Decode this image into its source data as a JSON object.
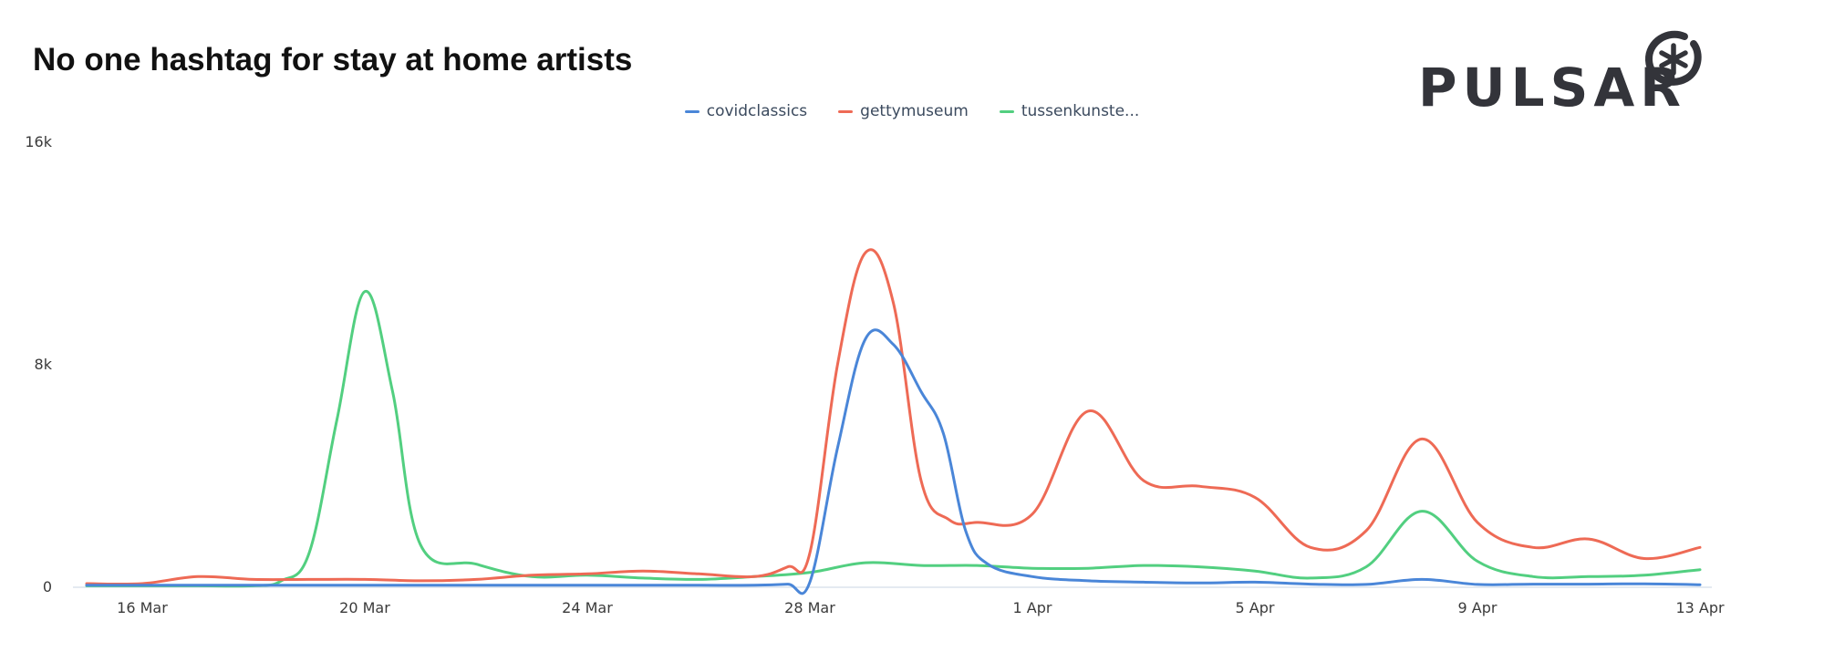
{
  "title": "No one hashtag for stay at home artists",
  "logo": {
    "text": "PULSAR",
    "icon": "asterisk-circle-icon",
    "color": "#33343a"
  },
  "chart_data": {
    "type": "line",
    "title": "No one hashtag for stay at home artists",
    "xlabel": "",
    "ylabel": "",
    "x_range": [
      "2020-03-15",
      "2020-04-13"
    ],
    "ylim": [
      0,
      16000
    ],
    "yticks": [
      {
        "value": 0,
        "label": "0"
      },
      {
        "value": 8000,
        "label": "8k"
      },
      {
        "value": 16000,
        "label": "16k"
      }
    ],
    "xticks": [
      {
        "day": 1,
        "label": "16 Mar"
      },
      {
        "day": 5,
        "label": "20 Mar"
      },
      {
        "day": 9,
        "label": "24 Mar"
      },
      {
        "day": 13,
        "label": "28 Mar"
      },
      {
        "day": 17,
        "label": "1 Apr"
      },
      {
        "day": 21,
        "label": "5 Apr"
      },
      {
        "day": 25,
        "label": "9 Apr"
      },
      {
        "day": 29,
        "label": "13 Apr"
      }
    ],
    "legend_position": "top-center",
    "grid": false,
    "series": [
      {
        "name": "covidclassics",
        "color": "#4a86d8",
        "points": [
          [
            0,
            40
          ],
          [
            1,
            40
          ],
          [
            2,
            40
          ],
          [
            3,
            40
          ],
          [
            4,
            40
          ],
          [
            5,
            40
          ],
          [
            6,
            40
          ],
          [
            7,
            40
          ],
          [
            8,
            40
          ],
          [
            9,
            40
          ],
          [
            10,
            40
          ],
          [
            11,
            40
          ],
          [
            12,
            40
          ],
          [
            12.6,
            80
          ],
          [
            13,
            150
          ],
          [
            13.5,
            5000
          ],
          [
            14,
            8900
          ],
          [
            14.5,
            8700
          ],
          [
            15,
            7000
          ],
          [
            15.4,
            5500
          ],
          [
            15.8,
            2000
          ],
          [
            16.2,
            800
          ],
          [
            17,
            350
          ],
          [
            18,
            200
          ],
          [
            19,
            150
          ],
          [
            20,
            120
          ],
          [
            21,
            150
          ],
          [
            22,
            80
          ],
          [
            23,
            70
          ],
          [
            24,
            250
          ],
          [
            25,
            70
          ],
          [
            26,
            80
          ],
          [
            27,
            80
          ],
          [
            28,
            90
          ],
          [
            29,
            60
          ]
        ]
      },
      {
        "name": "gettymuseum",
        "color": "#ee6a55",
        "points": [
          [
            0,
            100
          ],
          [
            1,
            100
          ],
          [
            2,
            350
          ],
          [
            3,
            250
          ],
          [
            4,
            250
          ],
          [
            5,
            250
          ],
          [
            6,
            200
          ],
          [
            7,
            250
          ],
          [
            8,
            400
          ],
          [
            9,
            450
          ],
          [
            10,
            550
          ],
          [
            11,
            450
          ],
          [
            12,
            350
          ],
          [
            12.6,
            700
          ],
          [
            13,
            1200
          ],
          [
            13.5,
            8000
          ],
          [
            14,
            12000
          ],
          [
            14.5,
            10200
          ],
          [
            15,
            3800
          ],
          [
            15.5,
            2400
          ],
          [
            16,
            2300
          ],
          [
            17,
            2600
          ],
          [
            18,
            6300
          ],
          [
            19,
            3800
          ],
          [
            20,
            3600
          ],
          [
            21,
            3200
          ],
          [
            22,
            1400
          ],
          [
            23,
            2000
          ],
          [
            24,
            5300
          ],
          [
            25,
            2300
          ],
          [
            26,
            1400
          ],
          [
            27,
            1700
          ],
          [
            28,
            1000
          ],
          [
            29,
            1400
          ]
        ]
      },
      {
        "name": "tussenkunste...",
        "color": "#52cf80",
        "points": [
          [
            0,
            20
          ],
          [
            1,
            20
          ],
          [
            2,
            20
          ],
          [
            3,
            20
          ],
          [
            3.5,
            200
          ],
          [
            4,
            1200
          ],
          [
            4.5,
            6000
          ],
          [
            5,
            10600
          ],
          [
            5.5,
            7000
          ],
          [
            6,
            1500
          ],
          [
            7,
            800
          ],
          [
            8,
            350
          ],
          [
            9,
            400
          ],
          [
            10,
            300
          ],
          [
            11,
            250
          ],
          [
            12,
            350
          ],
          [
            13,
            500
          ],
          [
            14,
            850
          ],
          [
            15,
            750
          ],
          [
            16,
            750
          ],
          [
            17,
            650
          ],
          [
            18,
            650
          ],
          [
            19,
            750
          ],
          [
            20,
            700
          ],
          [
            21,
            550
          ],
          [
            22,
            300
          ],
          [
            23,
            700
          ],
          [
            24,
            2700
          ],
          [
            25,
            900
          ],
          [
            26,
            350
          ],
          [
            27,
            350
          ],
          [
            28,
            400
          ],
          [
            29,
            600
          ]
        ]
      }
    ]
  }
}
